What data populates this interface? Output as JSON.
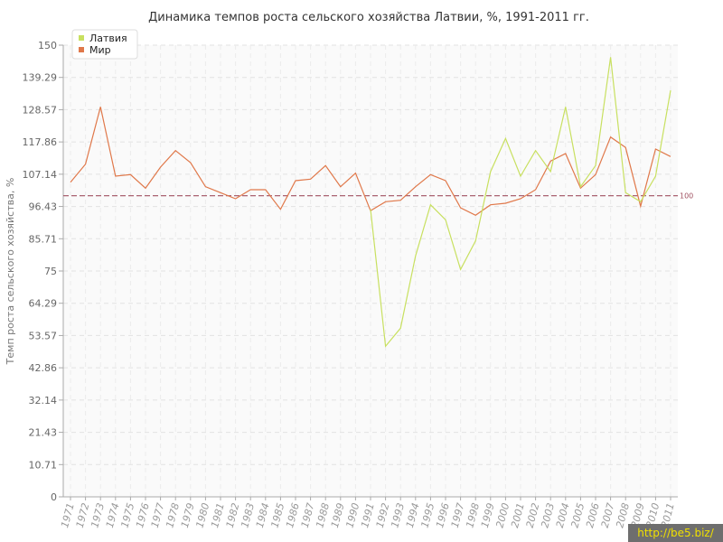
{
  "chart_data": {
    "type": "line",
    "title": "Динамика темпов роста сельского хозяйства Латвии, %, 1991-2011 гг.",
    "ylabel": "Темп роста сельского хозяйства, %",
    "xlabel": "",
    "ylim": [
      0,
      150
    ],
    "yticks": [
      "0",
      "10.71",
      "21.43",
      "32.14",
      "42.86",
      "53.57",
      "64.29",
      "75",
      "85.71",
      "96.43",
      "107.14",
      "117.86",
      "128.57",
      "139.29",
      "150"
    ],
    "categories": [
      "1971",
      "1972",
      "1973",
      "1974",
      "1975",
      "1976",
      "1977",
      "1978",
      "1979",
      "1980",
      "1981",
      "1982",
      "1983",
      "1984",
      "1985",
      "1986",
      "1987",
      "1988",
      "1989",
      "1990",
      "1991",
      "1992",
      "1993",
      "1994",
      "1995",
      "1996",
      "1997",
      "1998",
      "1999",
      "2000",
      "2001",
      "2002",
      "2003",
      "2004",
      "2005",
      "2006",
      "2007",
      "2008",
      "2009",
      "2010",
      "2011"
    ],
    "series": [
      {
        "name": "Латвия",
        "color": "#c8e060",
        "values": [
          null,
          null,
          null,
          null,
          null,
          null,
          null,
          null,
          null,
          null,
          null,
          null,
          null,
          null,
          null,
          null,
          null,
          null,
          null,
          null,
          95.5,
          50,
          56,
          80,
          97,
          92,
          75.5,
          85,
          108,
          119,
          106.5,
          115,
          108,
          129.5,
          103,
          110,
          146,
          101,
          98,
          106.5,
          135
        ]
      },
      {
        "name": "Мир",
        "color": "#e0784a",
        "values": [
          104.5,
          110.5,
          129.5,
          106.5,
          107,
          102.5,
          109.5,
          115,
          111,
          103,
          101,
          99,
          102,
          102,
          95.5,
          105,
          105.5,
          110,
          103,
          107.5,
          95,
          98,
          98.5,
          103,
          107,
          105,
          96,
          93.5,
          97,
          97.5,
          99,
          102,
          111.5,
          114,
          102.5,
          107,
          119.5,
          116,
          96.5,
          115.5,
          113
        ]
      }
    ],
    "reference_line": {
      "value": 100,
      "label": "100",
      "color": "#a05060"
    },
    "legend_position": "top-left",
    "grid": true
  },
  "watermark": "http://be5.biz/"
}
